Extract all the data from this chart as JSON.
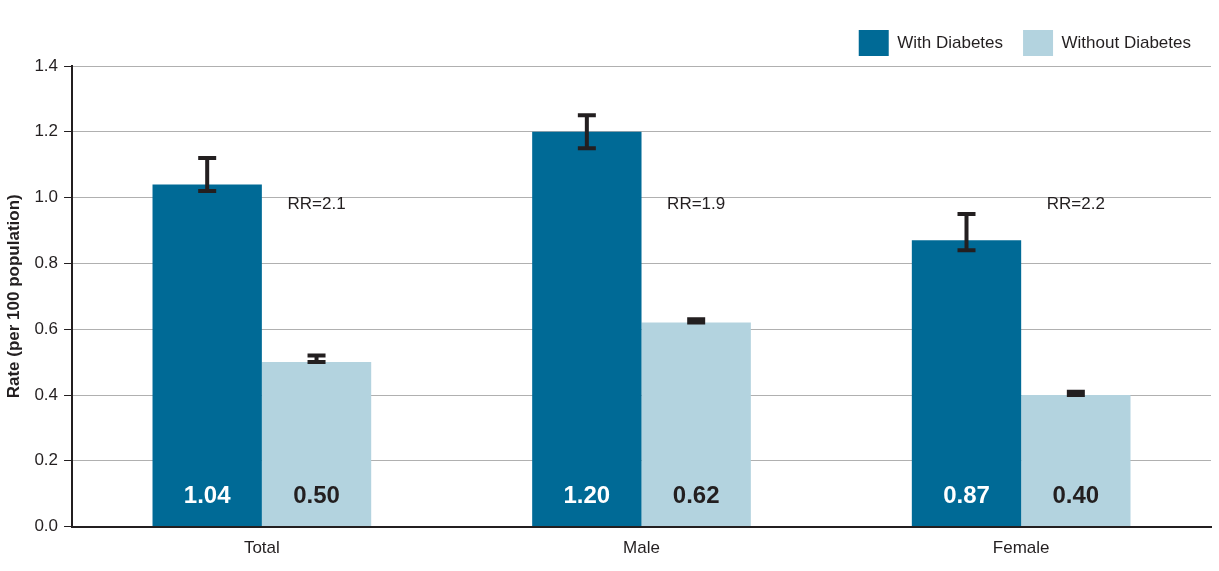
{
  "chart_data": {
    "type": "bar",
    "ylabel": "Rate (per 100 population)",
    "categories": [
      "Total",
      "Male",
      "Female"
    ],
    "series": [
      {
        "name": "With Diabetes",
        "color": "#006a96",
        "values": [
          1.04,
          1.2,
          0.87
        ],
        "value_labels": [
          "1.04",
          "1.20",
          "0.87"
        ],
        "errors": [
          [
            1.02,
            1.12
          ],
          [
            1.15,
            1.25
          ],
          [
            0.84,
            0.95
          ]
        ]
      },
      {
        "name": "Without Diabetes",
        "color": "#b3d3df",
        "values": [
          0.5,
          0.62,
          0.4
        ],
        "value_labels": [
          "0.50",
          "0.62",
          "0.40"
        ],
        "errors": [
          [
            0.5,
            0.52
          ],
          [
            0.62,
            0.63
          ],
          [
            0.4,
            0.41
          ]
        ]
      }
    ],
    "ylim": [
      0,
      1.4
    ],
    "yticks": [
      {
        "value": 0,
        "label": "0.0"
      },
      {
        "value": 0.2,
        "label": "0.2"
      },
      {
        "value": 0.4,
        "label": "0.4"
      },
      {
        "value": 0.6,
        "label": "0.6"
      },
      {
        "value": 0.8,
        "label": "0.8"
      },
      {
        "value": 1.0,
        "label": "1.0"
      },
      {
        "value": 1.2,
        "label": "1.2"
      },
      {
        "value": 1.4,
        "label": "1.4"
      }
    ],
    "grid": "y",
    "legend": "top right",
    "annotations": [
      "RR=2.1",
      "RR=1.9",
      "RR=2.2"
    ]
  }
}
